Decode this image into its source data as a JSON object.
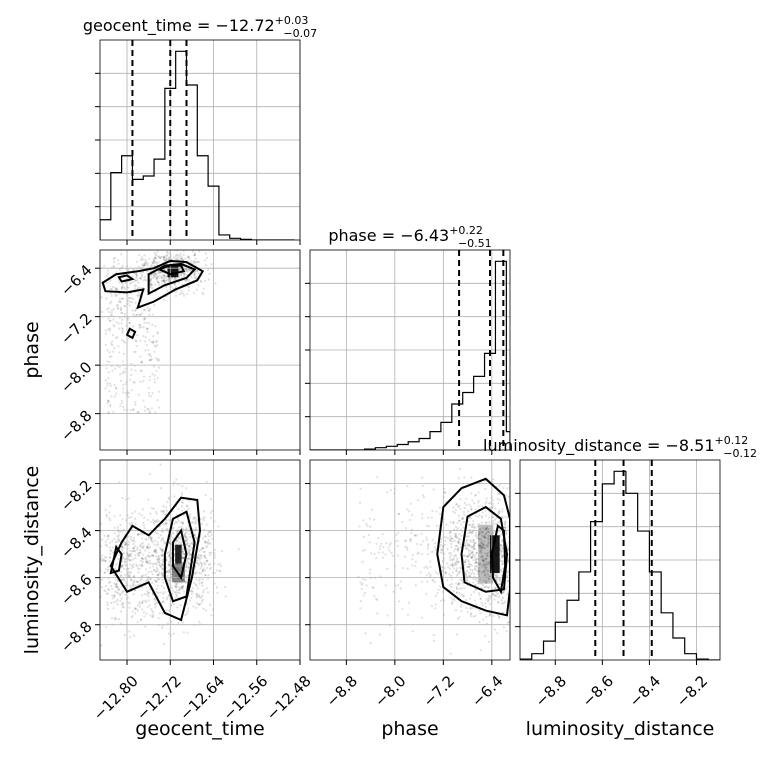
{
  "chart_data": {
    "type": "corner",
    "parameters": [
      "geocent_time",
      "phase",
      "luminosity_distance"
    ],
    "titles": [
      {
        "param": "geocent_time",
        "text": "geocent_time = −12.72",
        "plus": "+0.03",
        "minus": "−0.07",
        "median": -12.72,
        "q16": -12.79,
        "q84": -12.69
      },
      {
        "param": "phase",
        "text": "phase = −6.43",
        "plus": "+0.22",
        "minus": "−0.51",
        "median": -6.43,
        "q16": -6.94,
        "q84": -6.21
      },
      {
        "param": "luminosity_distance",
        "text": "luminosity_distance = −8.51",
        "plus": "+0.12",
        "minus": "−0.12",
        "median": -8.51,
        "q16": -8.63,
        "q84": -8.39
      }
    ],
    "ranges": {
      "geocent_time": [
        -12.85,
        -12.48
      ],
      "phase": [
        -9.4,
        -6.1
      ],
      "luminosity_distance": [
        -8.95,
        -8.1
      ]
    },
    "ticks": {
      "geocent_time": {
        "values": [
          -12.8,
          -12.72,
          -12.64,
          -12.56,
          -12.48
        ],
        "labels": [
          "−12.80",
          "−12.72",
          "−12.64",
          "−12.56",
          "−12.48"
        ]
      },
      "phase": {
        "values": [
          -8.8,
          -8.0,
          -7.2,
          -6.4
        ],
        "labels": [
          "−8.8",
          "−8.0",
          "−7.2",
          "−6.4"
        ]
      },
      "luminosity_distance": {
        "values": [
          -8.8,
          -8.6,
          -8.4,
          -8.2
        ],
        "labels": [
          "−8.8",
          "−8.6",
          "−8.4",
          "−8.2"
        ]
      }
    },
    "histograms": {
      "geocent_time": {
        "edges": [
          -12.85,
          -12.83,
          -12.81,
          -12.79,
          -12.77,
          -12.75,
          -12.73,
          -12.71,
          -12.69,
          -12.67,
          -12.65,
          -12.63,
          -12.61,
          -12.59,
          -12.57,
          -12.55,
          -12.53,
          -12.51,
          -12.49
        ],
        "counts": [
          6,
          20,
          25,
          18,
          19,
          24,
          45,
          56,
          46,
          25,
          16,
          1.5,
          0.5,
          0.2,
          0,
          0,
          0,
          0
        ]
      },
      "phase": {
        "edges": [
          -9.4,
          -9.22,
          -9.04,
          -8.86,
          -8.68,
          -8.5,
          -8.32,
          -8.14,
          -7.96,
          -7.78,
          -7.6,
          -7.42,
          -7.24,
          -7.06,
          -6.88,
          -6.7,
          -6.52,
          -6.34,
          -6.16,
          -6.1
        ],
        "counts": [
          0,
          0,
          0,
          0,
          0,
          0.2,
          0.5,
          0.8,
          1.2,
          1.8,
          2.5,
          4,
          6,
          10,
          12.5,
          16,
          21,
          41,
          4
        ]
      },
      "luminosity_distance": {
        "edges": [
          -8.95,
          -8.9,
          -8.85,
          -8.8,
          -8.75,
          -8.7,
          -8.65,
          -8.6,
          -8.55,
          -8.5,
          -8.45,
          -8.4,
          -8.35,
          -8.3,
          -8.25,
          -8.2,
          -8.15,
          -8.1
        ],
        "counts": [
          0.3,
          2,
          6,
          12,
          19,
          28,
          44,
          56,
          60,
          53,
          41,
          28,
          15,
          7,
          2,
          0.3,
          0
        ]
      }
    },
    "grid": true
  }
}
